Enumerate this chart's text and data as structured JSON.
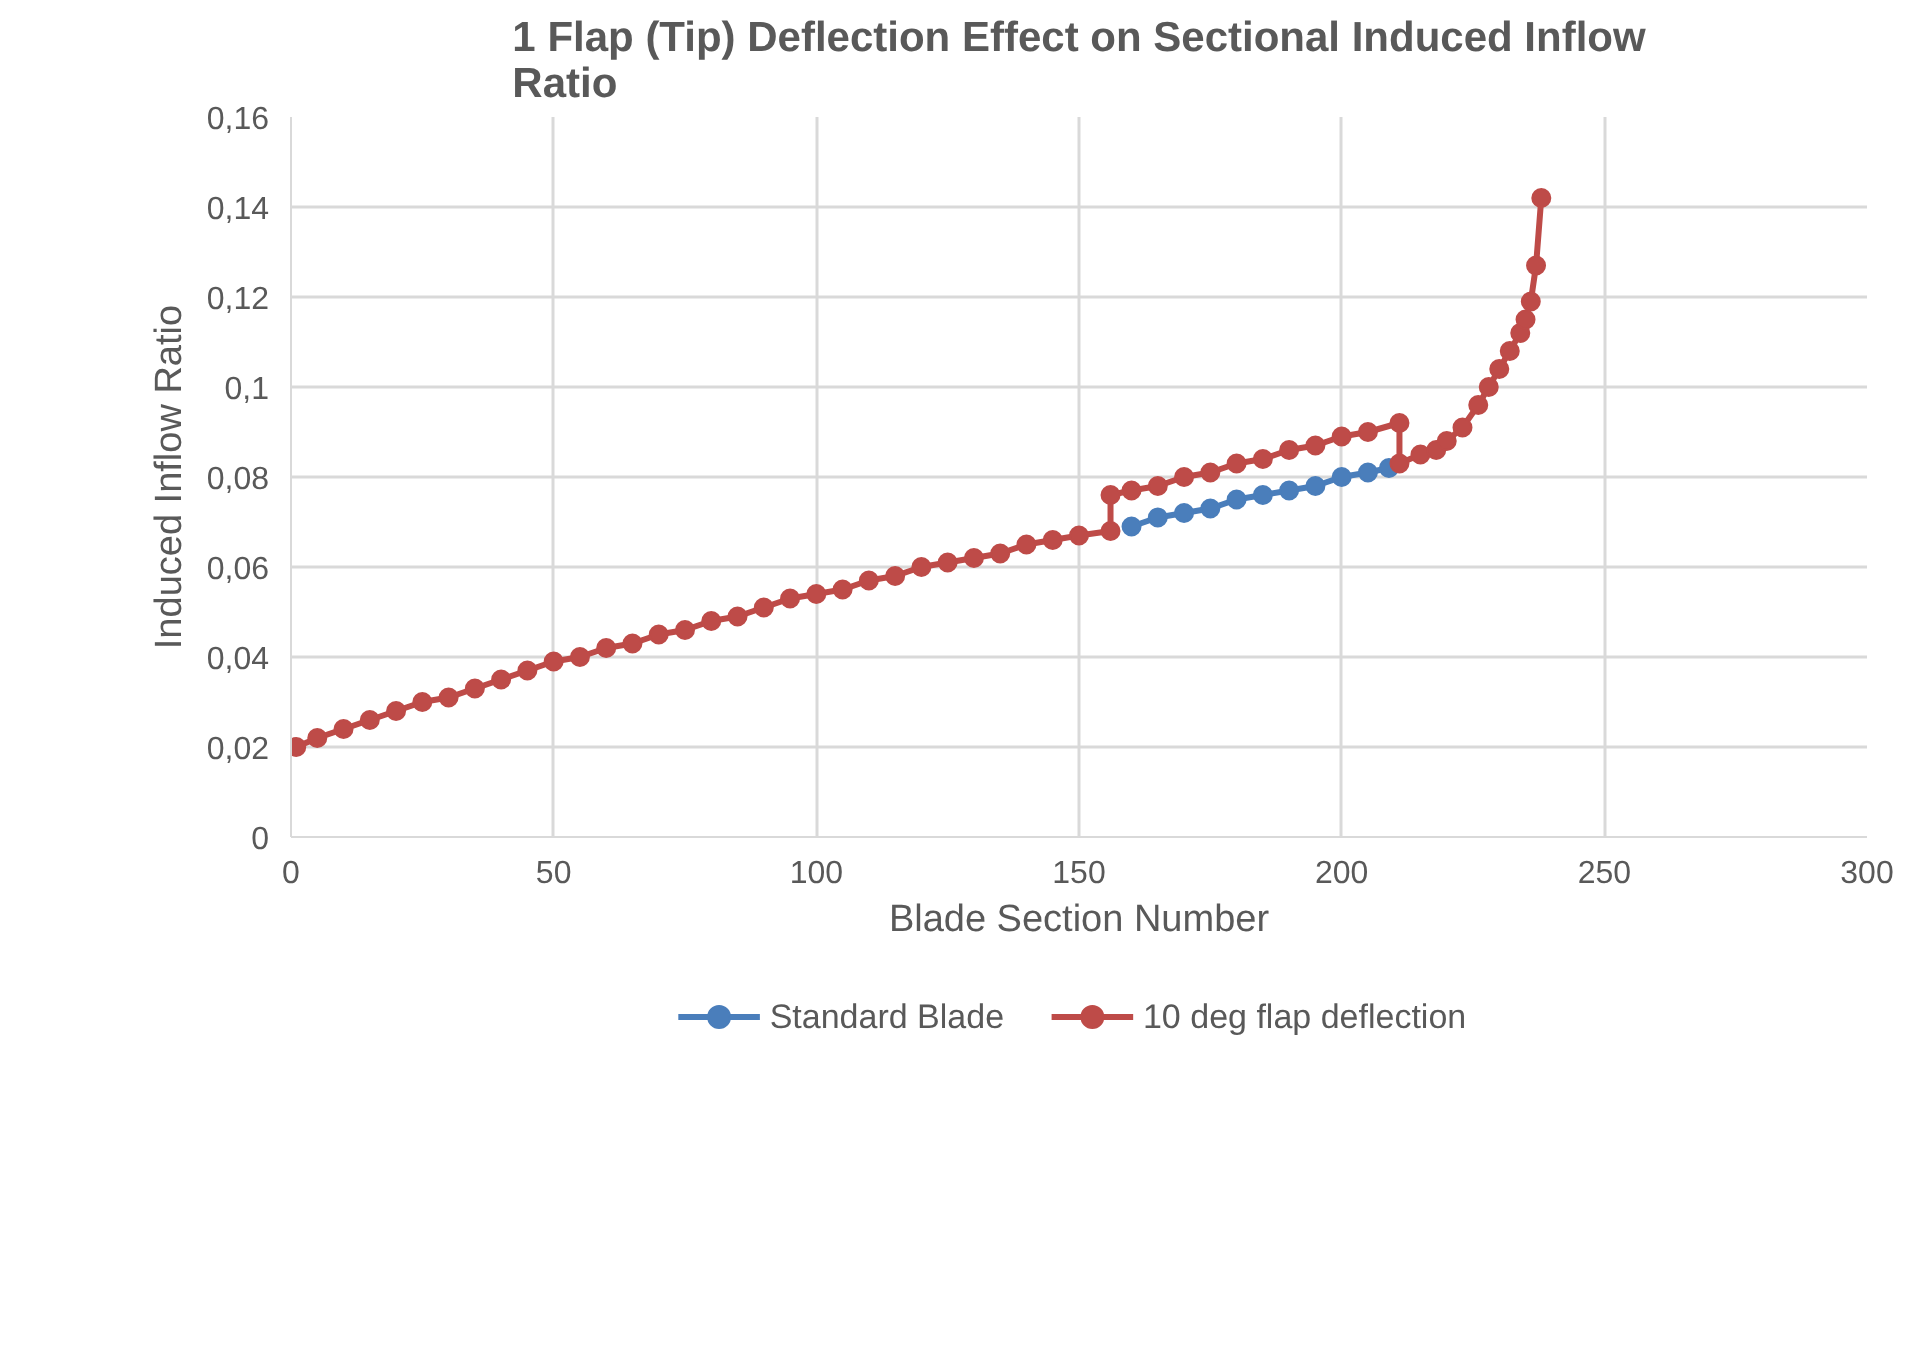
{
  "chart_data": {
    "type": "line",
    "title": "1 Flap (Tip) Deflection Effect on Sectional Induced Inflow\nRatio",
    "xlabel": "Blade Section Number",
    "ylabel": "Induced Inflow Ratio",
    "xlim": [
      0,
      300
    ],
    "xticks": [
      0,
      50,
      100,
      150,
      200,
      250,
      300
    ],
    "ylim": [
      0,
      0.16
    ],
    "yticks": [
      {
        "value": 0,
        "label": "0"
      },
      {
        "value": 0.02,
        "label": "0,02"
      },
      {
        "value": 0.04,
        "label": "0,04"
      },
      {
        "value": 0.06,
        "label": "0,06"
      },
      {
        "value": 0.08,
        "label": "0,08"
      },
      {
        "value": 0.1,
        "label": "0,1"
      },
      {
        "value": 0.12,
        "label": "0,12"
      },
      {
        "value": 0.14,
        "label": "0,14"
      },
      {
        "value": 0.16,
        "label": "0,16"
      }
    ],
    "grid": true,
    "legend": "bottom",
    "marker": "circle",
    "line_style": "solid",
    "series": [
      {
        "name": "Standard Blade",
        "color": "#4a7ebb",
        "x": [
          160,
          165,
          170,
          175,
          180,
          185,
          190,
          195,
          200,
          205,
          209
        ],
        "values": [
          0.069,
          0.071,
          0.072,
          0.073,
          0.075,
          0.076,
          0.077,
          0.078,
          0.08,
          0.081,
          0.082
        ]
      },
      {
        "name": "10 deg flap deflection",
        "color": "#be4b48",
        "x": [
          1,
          5,
          10,
          15,
          20,
          25,
          30,
          35,
          40,
          45,
          50,
          55,
          60,
          65,
          70,
          75,
          80,
          85,
          90,
          95,
          100,
          105,
          110,
          115,
          120,
          125,
          130,
          135,
          140,
          145,
          150,
          156,
          156,
          160,
          165,
          170,
          175,
          180,
          185,
          190,
          195,
          200,
          205,
          211,
          211,
          215,
          218,
          220,
          223,
          226,
          228,
          230,
          232,
          234,
          235,
          236,
          237,
          238
        ],
        "values": [
          0.02,
          0.022,
          0.024,
          0.026,
          0.028,
          0.03,
          0.031,
          0.033,
          0.035,
          0.037,
          0.039,
          0.04,
          0.042,
          0.043,
          0.045,
          0.046,
          0.048,
          0.049,
          0.051,
          0.053,
          0.054,
          0.055,
          0.057,
          0.058,
          0.06,
          0.061,
          0.062,
          0.063,
          0.065,
          0.066,
          0.067,
          0.068,
          0.076,
          0.077,
          0.078,
          0.08,
          0.081,
          0.083,
          0.084,
          0.086,
          0.087,
          0.089,
          0.09,
          0.092,
          0.083,
          0.085,
          0.086,
          0.088,
          0.091,
          0.096,
          0.1,
          0.104,
          0.108,
          0.112,
          0.115,
          0.119,
          0.127,
          0.142
        ]
      }
    ]
  }
}
